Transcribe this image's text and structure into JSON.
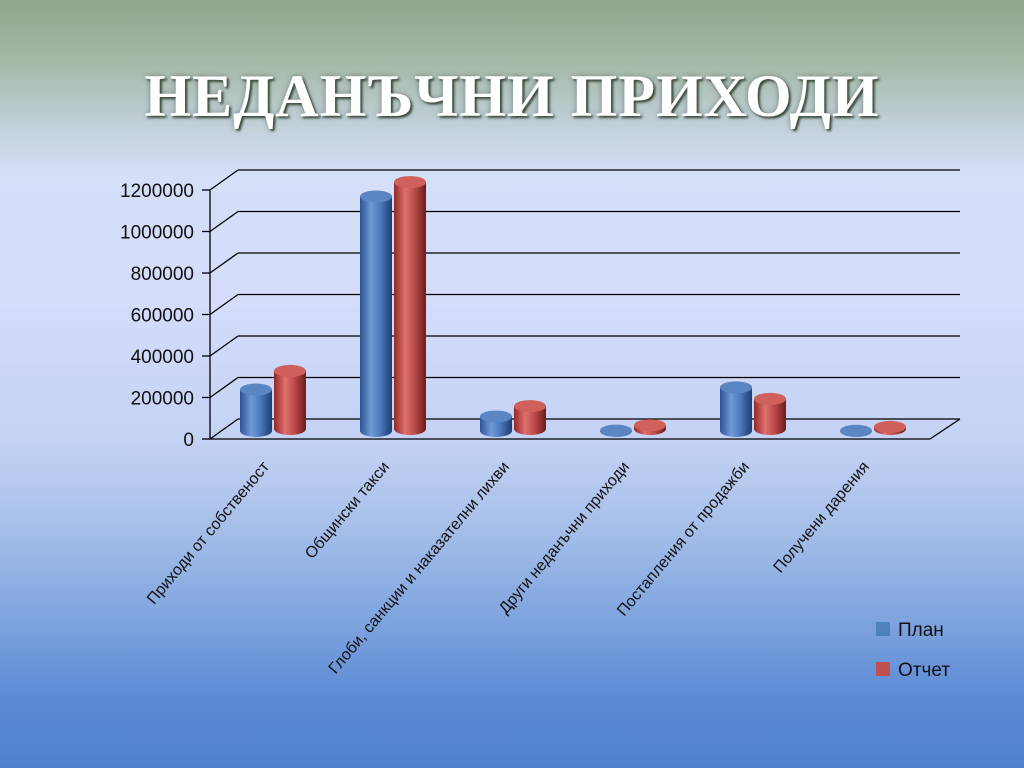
{
  "slide": {
    "title": "НЕДАНЪЧНИ ПРИХОДИ"
  },
  "colors": {
    "plan": "#4f81bd",
    "report": "#c0504d"
  },
  "chart_data": {
    "type": "bar",
    "title": "",
    "xlabel": "",
    "ylabel": "",
    "ylim": [
      0,
      1200000
    ],
    "yticks": [
      "0",
      "200000",
      "400000",
      "600000",
      "800000",
      "1000000",
      "1200000"
    ],
    "grid": true,
    "legend_position": "right",
    "categories": [
      "Приходи от собственост",
      "Общински такси",
      "Глоби, санкции и наказателни лихви",
      "Други неданъчни приходи",
      "Постапления от продажби",
      "Получени дарения"
    ],
    "series": [
      {
        "name": "План",
        "values": [
          200000,
          1130000,
          70000,
          2000,
          210000,
          1000
        ]
      },
      {
        "name": "Отчет",
        "values": [
          280000,
          1190000,
          110000,
          18000,
          145000,
          10000
        ]
      }
    ]
  }
}
